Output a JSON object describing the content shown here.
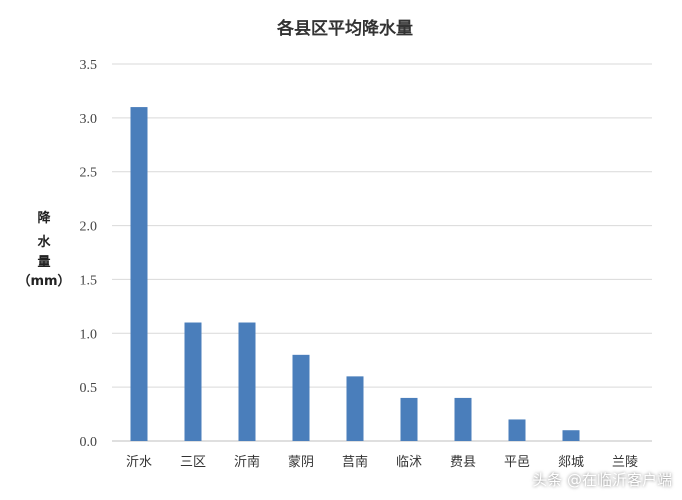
{
  "chart_data": {
    "type": "bar",
    "title": "各县区平均降水量",
    "ylabel": [
      "降",
      "水",
      "量",
      "（mm）"
    ],
    "xlabel": "",
    "categories": [
      "沂水",
      "三区",
      "沂南",
      "蒙阴",
      "莒南",
      "临沭",
      "费县",
      "平邑",
      "郯城",
      "兰陵"
    ],
    "values": [
      3.1,
      1.1,
      1.1,
      0.8,
      0.6,
      0.4,
      0.4,
      0.2,
      0.1,
      0.0
    ],
    "ylim": [
      0,
      3.5
    ],
    "yticks": [
      "0.0",
      "0.5",
      "1.0",
      "1.5",
      "2.0",
      "2.5",
      "3.0",
      "3.5"
    ],
    "grid": true,
    "bar_color": "#4a7ebb"
  },
  "watermark": "头条 @在临沂客户端"
}
